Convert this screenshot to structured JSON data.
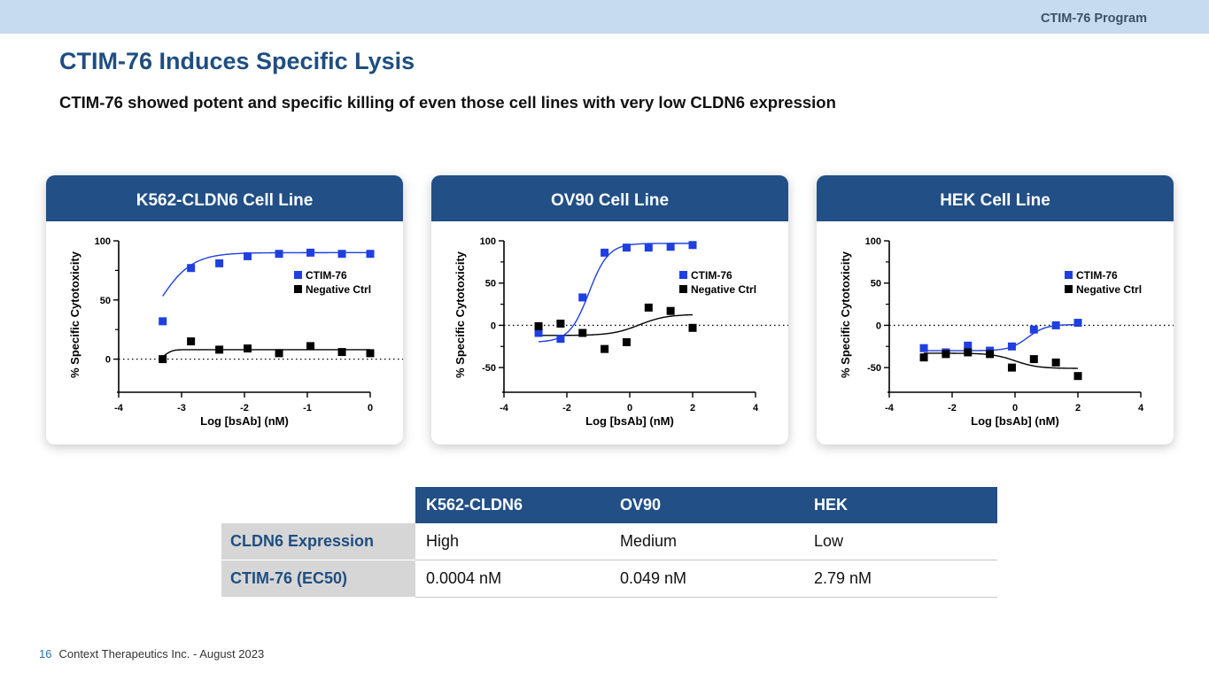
{
  "header": {
    "program": "CTIM-76 Program"
  },
  "title": "CTIM-76 Induces Specific Lysis",
  "subtitle": "CTIM-76 showed potent and specific killing of even those cell lines with very low CLDN6 expression",
  "colors": {
    "brand": "#214f86",
    "series1": "#1f3fe0",
    "series2": "#000000"
  },
  "chart_data": [
    {
      "type": "scatter",
      "title": "K562-CLDN6 Cell Line",
      "xlabel": "Log [bsAb] (nM)",
      "ylabel": "% Specific Cytotoxicity",
      "xlim": [
        -4,
        0
      ],
      "ylim": [
        -25,
        100
      ],
      "xticks": [
        -4,
        -3,
        -2,
        -1,
        0
      ],
      "yticks": [
        0,
        50,
        100
      ],
      "minor_yticks": [
        25,
        75
      ],
      "legend_position": "right",
      "series": [
        {
          "name": "CTIM-76",
          "marker": "square",
          "color": "#1f3fe0",
          "x": [
            -3.3,
            -2.85,
            -2.4,
            -1.95,
            -1.45,
            -0.95,
            -0.45,
            0
          ],
          "y": [
            32,
            77,
            81,
            87,
            89,
            90,
            89,
            89
          ],
          "fit": {
            "bottom": 0,
            "top": 90,
            "logEC50": -3.4,
            "hill": 1.6,
            "from": -3.3,
            "to": 0
          }
        },
        {
          "name": "Negative Ctrl",
          "marker": "square",
          "color": "#000000",
          "x": [
            -3.3,
            -2.85,
            -2.4,
            -1.95,
            -1.45,
            -0.95,
            -0.45,
            0
          ],
          "y": [
            0,
            15,
            8,
            9,
            5,
            11,
            6,
            5
          ],
          "fit": {
            "bottom": 0,
            "top": 8,
            "logEC50": -3.25,
            "hill": 8,
            "from": -3.3,
            "to": 0
          }
        }
      ]
    },
    {
      "type": "scatter",
      "title": "OV90 Cell Line",
      "xlabel": "Log [bsAb] (nM)",
      "ylabel": "% Specific Cytotoxicity",
      "xlim": [
        -4,
        4
      ],
      "ylim": [
        -75,
        100
      ],
      "xticks": [
        -4,
        -2,
        0,
        2,
        4
      ],
      "yticks": [
        -50,
        0,
        50,
        100
      ],
      "minor_yticks": [
        -25,
        25,
        75
      ],
      "legend_position": "right",
      "series": [
        {
          "name": "CTIM-76",
          "marker": "square",
          "color": "#1f3fe0",
          "x": [
            -2.9,
            -2.2,
            -1.5,
            -0.8,
            -0.1,
            0.6,
            1.3,
            2.0
          ],
          "y": [
            -9,
            -16,
            33,
            86,
            92,
            92,
            93,
            95
          ],
          "fit": {
            "bottom": -20,
            "top": 97,
            "logEC50": -1.3,
            "hill": 1.4,
            "from": -2.9,
            "to": 2.0
          }
        },
        {
          "name": "Negative Ctrl",
          "marker": "square",
          "color": "#000000",
          "x": [
            -2.9,
            -2.2,
            -1.5,
            -0.8,
            -0.1,
            0.6,
            1.3,
            2.0
          ],
          "y": [
            -1,
            2,
            -9,
            -28,
            -20,
            21,
            17,
            -3
          ],
          "fit": {
            "bottom": -12,
            "top": 13,
            "logEC50": 0.3,
            "hill": 1.0,
            "from": -2.9,
            "to": 2.0
          }
        }
      ]
    },
    {
      "type": "scatter",
      "title": "HEK Cell Line",
      "xlabel": "Log [bsAb] (nM)",
      "ylabel": "% Specific Cytotoxicity",
      "xlim": [
        -4,
        4
      ],
      "ylim": [
        -75,
        100
      ],
      "xticks": [
        -4,
        -2,
        0,
        2,
        4
      ],
      "yticks": [
        -50,
        0,
        50,
        100
      ],
      "minor_yticks": [
        -25,
        25,
        75
      ],
      "legend_position": "right",
      "series": [
        {
          "name": "CTIM-76",
          "marker": "square",
          "color": "#1f3fe0",
          "x": [
            -2.9,
            -2.2,
            -1.5,
            -0.8,
            -0.1,
            0.6,
            1.3,
            2.0
          ],
          "y": [
            -27,
            -32,
            -24,
            -30,
            -25,
            -5,
            0,
            3
          ],
          "fit": {
            "bottom": -30,
            "top": 1,
            "logEC50": 0.4,
            "hill": 1.5,
            "from": -2.9,
            "to": 2.0
          }
        },
        {
          "name": "Negative Ctrl",
          "marker": "square",
          "color": "#000000",
          "x": [
            -2.9,
            -2.2,
            -1.5,
            -0.8,
            -0.1,
            0.6,
            1.3,
            2.0
          ],
          "y": [
            -38,
            -34,
            -32,
            -34,
            -50,
            -40,
            -44,
            -60
          ],
          "fit": {
            "bottom": -33,
            "top": -51,
            "logEC50": 0.0,
            "hill": 1.2,
            "from": -2.9,
            "to": 2.0
          }
        }
      ]
    }
  ],
  "table": {
    "headers": [
      "K562-CLDN6",
      "OV90",
      "HEK"
    ],
    "rows": [
      {
        "label": "CLDN6 Expression",
        "values": [
          "High",
          "Medium",
          "Low"
        ]
      },
      {
        "label": "CTIM-76 (EC50)",
        "values": [
          "0.0004 nM",
          "0.049 nM",
          "2.79 nM"
        ]
      }
    ]
  },
  "footer": {
    "page": "16",
    "text": "Context Therapeutics Inc. - August 2023"
  }
}
